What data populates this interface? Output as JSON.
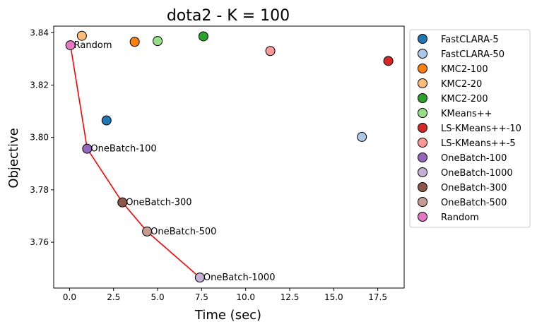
{
  "chart_data": {
    "type": "scatter",
    "title": "dota2 - K = 100",
    "xlabel": "Time (sec)",
    "ylabel": "Objective",
    "xlim": [
      -0.9,
      19.0
    ],
    "ylim": [
      3.7425,
      3.8425
    ],
    "xticks": [
      0.0,
      2.5,
      5.0,
      7.5,
      10.0,
      12.5,
      15.0,
      17.5
    ],
    "xtick_labels": [
      "0.0",
      "2.5",
      "5.0",
      "7.5",
      "10.0",
      "12.5",
      "15.0",
      "17.5"
    ],
    "yticks": [
      3.76,
      3.78,
      3.8,
      3.82,
      3.84
    ],
    "ytick_labels": [
      "3.76",
      "3.78",
      "3.80",
      "3.82",
      "3.84"
    ],
    "grid": false,
    "legend_position": "outside-right",
    "series": [
      {
        "name": "FastCLARA-5",
        "color": "#1f77b4",
        "x": 2.1,
        "y": 3.8065,
        "label": ""
      },
      {
        "name": "FastCLARA-50",
        "color": "#aec7e8",
        "x": 16.6,
        "y": 3.8002,
        "label": ""
      },
      {
        "name": "KMC2-100",
        "color": "#ff7f0e",
        "x": 3.7,
        "y": 3.8365,
        "label": ""
      },
      {
        "name": "KMC2-20",
        "color": "#ffbb78",
        "x": 0.7,
        "y": 3.8388,
        "label": ""
      },
      {
        "name": "KMC2-200",
        "color": "#2ca02c",
        "x": 7.6,
        "y": 3.8386,
        "label": ""
      },
      {
        "name": "KMeans++",
        "color": "#98df8a",
        "x": 5.0,
        "y": 3.8368,
        "label": ""
      },
      {
        "name": "LS-KMeans++-10",
        "color": "#d62728",
        "x": 18.1,
        "y": 3.8292,
        "label": ""
      },
      {
        "name": "LS-KMeans++-5",
        "color": "#ff9896",
        "x": 11.4,
        "y": 3.833,
        "label": ""
      },
      {
        "name": "OneBatch-100",
        "color": "#9467bd",
        "x": 1.0,
        "y": 3.7957,
        "label": "OneBatch-100"
      },
      {
        "name": "OneBatch-1000",
        "color": "#c5b0d5",
        "x": 7.4,
        "y": 3.7465,
        "label": "OneBatch-1000"
      },
      {
        "name": "OneBatch-300",
        "color": "#8c564b",
        "x": 3.0,
        "y": 3.7752,
        "label": "OneBatch-300"
      },
      {
        "name": "OneBatch-500",
        "color": "#c49c94",
        "x": 4.4,
        "y": 3.7641,
        "label": "OneBatch-500"
      },
      {
        "name": "Random",
        "color": "#e377c2",
        "x": 0.05,
        "y": 3.8352,
        "label": "Random"
      }
    ],
    "trend_line": {
      "color": "#ff0000",
      "order": [
        "Random",
        "OneBatch-100",
        "OneBatch-300",
        "OneBatch-500",
        "OneBatch-1000"
      ]
    }
  }
}
